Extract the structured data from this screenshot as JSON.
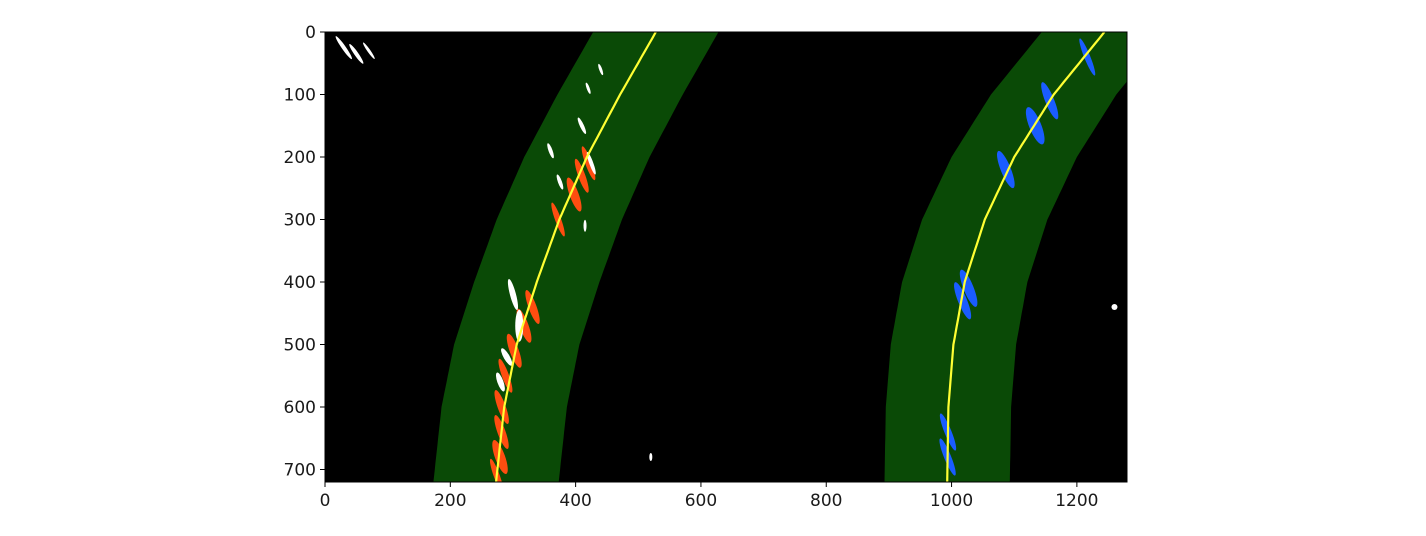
{
  "chart_data": {
    "type": "image",
    "title": "",
    "xlabel": "",
    "ylabel": "",
    "xlim": [
      0,
      1280
    ],
    "ylim": [
      720,
      0
    ],
    "x_ticks": [
      0,
      200,
      400,
      600,
      800,
      1000,
      1200
    ],
    "y_ticks": [
      0,
      100,
      200,
      300,
      400,
      500,
      600,
      700
    ],
    "grid": false,
    "colors": {
      "background": "#000000",
      "search_window": "#0a4a06",
      "fit_line": "#ffff33",
      "left_lane_pixels": "#ff4d10",
      "right_lane_pixels": "#1a5cff",
      "other_pixels": "#ffffff"
    },
    "series": [
      {
        "y": [
          0,
          100,
          200,
          300,
          400,
          500,
          600,
          720
        ],
        "x": [
          528,
          471,
          418,
          374,
          338,
          306,
          286,
          273
        ]
      },
      {
        "y": [
          0,
          100,
          200,
          300,
          400,
          500,
          600,
          720
        ],
        "x": [
          1244,
          1163,
          1100,
          1053,
          1021,
          1003,
          995,
          993
        ]
      }
    ],
    "search_margin": 100
  }
}
